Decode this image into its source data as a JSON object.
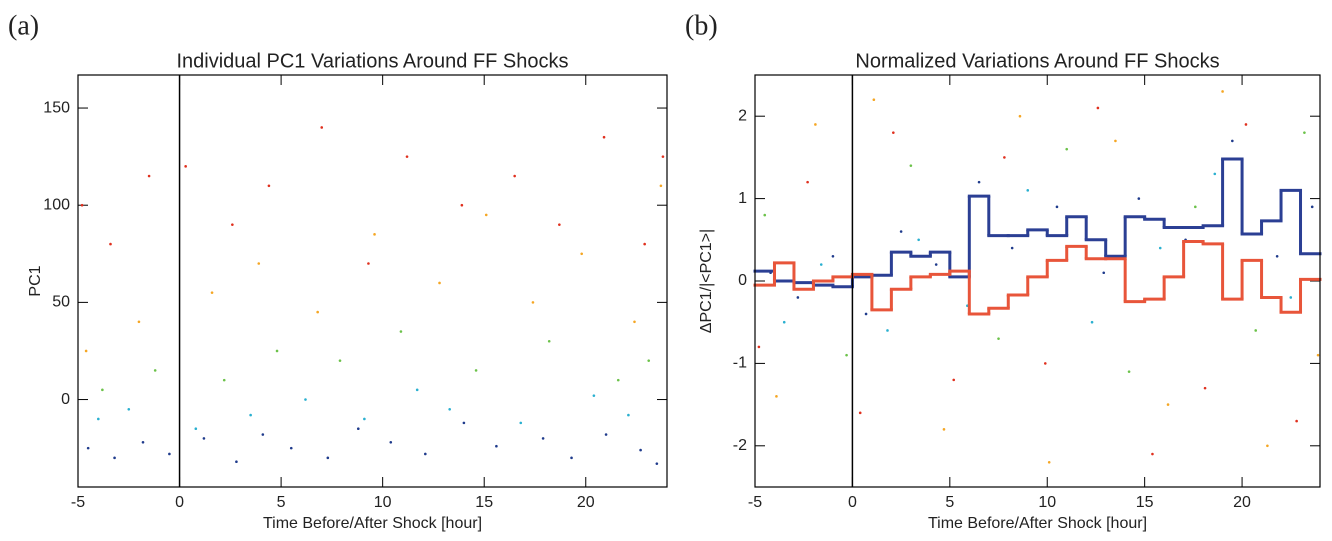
{
  "chart_data": [
    {
      "type": "scatter",
      "label": "(a)",
      "title": "Individual PC1 Variations Around FF Shocks",
      "xlabel": "Time Before/After Shock [hour]",
      "ylabel": "PC1",
      "xlim": [
        -5,
        24
      ],
      "ylim": [
        -45,
        167
      ],
      "xticks": [
        -5,
        0,
        5,
        10,
        15,
        20
      ],
      "yticks": [
        0,
        50,
        100,
        150
      ],
      "vline": 0,
      "series": [
        {
          "color": "#1f3b8c",
          "x": [
            -4.5,
            -3.2,
            -1.8,
            -0.5,
            1.2,
            2.8,
            4.1,
            5.5,
            7.3,
            8.8,
            10.4,
            12.1,
            14.0,
            15.6,
            17.9,
            19.3,
            21.0,
            22.7,
            23.5
          ],
          "values": [
            -25,
            -30,
            -22,
            -28,
            -20,
            -32,
            -18,
            -25,
            -30,
            -15,
            -22,
            -28,
            -12,
            -24,
            -20,
            -30,
            -18,
            -26,
            -33
          ]
        },
        {
          "color": "#2ab0d0",
          "x": [
            -4.0,
            -2.5,
            0.8,
            3.5,
            6.2,
            9.1,
            11.7,
            13.3,
            16.8,
            20.4,
            22.1
          ],
          "values": [
            -10,
            -5,
            -15,
            -8,
            0,
            -10,
            5,
            -5,
            -12,
            2,
            -8
          ]
        },
        {
          "color": "#6cc24a",
          "x": [
            -3.8,
            -1.2,
            2.2,
            4.8,
            7.9,
            10.9,
            14.6,
            18.2,
            21.6,
            23.1
          ],
          "values": [
            5,
            15,
            10,
            25,
            20,
            35,
            15,
            30,
            10,
            20
          ]
        },
        {
          "color": "#f5a623",
          "x": [
            -4.6,
            -2.0,
            1.6,
            3.9,
            6.8,
            9.6,
            12.8,
            15.1,
            17.4,
            19.8,
            22.4,
            23.7
          ],
          "values": [
            25,
            40,
            55,
            70,
            45,
            85,
            60,
            95,
            50,
            75,
            40,
            110
          ]
        },
        {
          "color": "#e0301e",
          "x": [
            -4.8,
            -3.4,
            -1.5,
            0.3,
            2.6,
            4.4,
            7.0,
            9.3,
            11.2,
            13.9,
            16.5,
            18.7,
            20.9,
            22.9,
            23.8
          ],
          "values": [
            100,
            80,
            115,
            120,
            90,
            110,
            140,
            70,
            125,
            100,
            115,
            90,
            135,
            80,
            125
          ]
        }
      ]
    },
    {
      "type": "scatter",
      "label": "(b)",
      "title": "Normalized Variations Around FF Shocks",
      "xlabel": "Time Before/After Shock [hour]",
      "ylabel": "ΔPC1/|<PC1>|",
      "xlim": [
        -5,
        24
      ],
      "ylim": [
        -2.5,
        2.5
      ],
      "xticks": [
        -5,
        0,
        5,
        10,
        15,
        20
      ],
      "yticks": [
        -2,
        -1,
        0,
        1,
        2
      ],
      "vline": 0,
      "series": [
        {
          "color": "#1f3b8c",
          "x": [
            -4.2,
            -2.8,
            -1.0,
            0.7,
            2.5,
            4.3,
            6.5,
            8.2,
            10.5,
            12.9,
            14.7,
            17.1,
            19.5,
            21.8,
            23.6
          ],
          "values": [
            0.1,
            -0.2,
            0.3,
            -0.4,
            0.6,
            0.2,
            1.2,
            0.4,
            0.9,
            0.1,
            1.0,
            0.5,
            1.7,
            0.3,
            0.9
          ]
        },
        {
          "color": "#2ab0d0",
          "x": [
            -3.5,
            -1.6,
            1.8,
            3.4,
            5.9,
            9.0,
            12.3,
            15.8,
            18.6,
            22.5
          ],
          "values": [
            -0.5,
            0.2,
            -0.6,
            0.5,
            -0.3,
            1.1,
            -0.5,
            0.4,
            1.3,
            -0.2
          ]
        },
        {
          "color": "#6cc24a",
          "x": [
            -4.5,
            -0.3,
            3.0,
            7.5,
            11.0,
            14.2,
            17.6,
            20.7,
            23.2
          ],
          "values": [
            0.8,
            -0.9,
            1.4,
            -0.7,
            1.6,
            -1.1,
            0.9,
            -0.6,
            1.8
          ]
        },
        {
          "color": "#f5a623",
          "x": [
            -3.9,
            -1.9,
            1.1,
            4.7,
            8.6,
            10.1,
            13.5,
            16.2,
            19.0,
            21.3,
            23.9
          ],
          "values": [
            -1.4,
            1.9,
            2.2,
            -1.8,
            2.0,
            -2.2,
            1.7,
            -1.5,
            2.3,
            -2.0,
            -0.9
          ]
        },
        {
          "color": "#e0301e",
          "x": [
            -4.8,
            -2.3,
            0.4,
            2.1,
            5.2,
            7.8,
            9.9,
            12.6,
            15.4,
            18.1,
            20.2,
            22.8
          ],
          "values": [
            -0.8,
            1.2,
            -1.6,
            1.8,
            -1.2,
            1.5,
            -1.0,
            2.1,
            -2.1,
            -1.3,
            1.9,
            -1.7
          ]
        }
      ],
      "bins": [
        -5,
        -4,
        -3,
        -2,
        -1,
        0,
        1,
        2,
        3,
        4,
        5,
        6,
        7,
        8,
        9,
        10,
        11,
        12,
        13,
        14,
        15,
        16,
        17,
        18,
        19,
        20,
        21,
        22,
        23,
        24
      ],
      "step_series": [
        {
          "color": "#2b3f94",
          "values": [
            0.12,
            0.0,
            -0.02,
            -0.05,
            -0.07,
            0.05,
            0.07,
            0.35,
            0.3,
            0.35,
            0.05,
            1.03,
            0.55,
            0.55,
            0.62,
            0.55,
            0.78,
            0.5,
            0.3,
            0.78,
            0.75,
            0.65,
            0.65,
            0.67,
            1.48,
            0.57,
            0.73,
            1.1,
            0.33
          ]
        },
        {
          "color": "#e8553a",
          "values": [
            -0.05,
            0.22,
            -0.1,
            0.0,
            0.05,
            0.08,
            -0.35,
            -0.1,
            0.05,
            0.08,
            0.12,
            -0.4,
            -0.33,
            -0.17,
            0.05,
            0.25,
            0.42,
            0.27,
            0.27,
            -0.25,
            -0.22,
            0.05,
            0.48,
            0.45,
            -0.22,
            0.25,
            -0.2,
            -0.38,
            0.02
          ]
        }
      ]
    }
  ]
}
